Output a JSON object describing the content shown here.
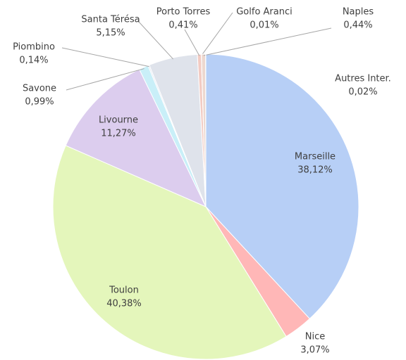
{
  "chart_data": {
    "type": "pie",
    "categories": [
      "Marseille",
      "Nice",
      "Toulon",
      "Livourne",
      "Savone",
      "Piombino",
      "Santa Térésa",
      "Porto Torres",
      "Golfo Aranci",
      "Naples",
      "Autres Inter."
    ],
    "values": [
      38.12,
      3.07,
      40.38,
      11.27,
      0.99,
      0.14,
      5.15,
      0.41,
      0.01,
      0.44,
      0.02
    ],
    "value_labels": [
      "38,12%",
      "3,07%",
      "40,38%",
      "11,27%",
      "0,99%",
      "0,14%",
      "5,15%",
      "0,41%",
      "0,01%",
      "0,44%",
      "0,02%"
    ],
    "colors": [
      "#b7cff6",
      "#ffb7b7",
      "#e4f6bb",
      "#dccdee",
      "#c9eff8",
      "#dfe6f2",
      "#dfe3eb",
      "#f2cbc3",
      "#e8f0d6",
      "#edd8cf",
      "#ddd1eb"
    ]
  }
}
